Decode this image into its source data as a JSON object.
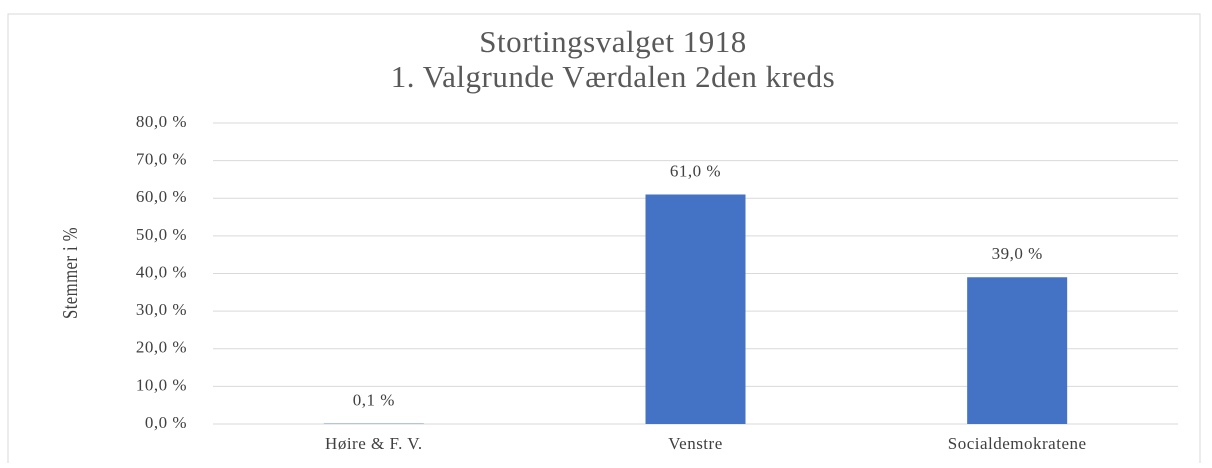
{
  "chart_data": {
    "type": "bar",
    "title": [
      "Stortingsvalget 1918",
      "1. Valgrunde Værdalen 2den kreds"
    ],
    "y_label": "Stemmer i %",
    "categories": [
      "Høire & F. V.",
      "Venstre",
      "Socialdemokratene"
    ],
    "values": [
      0.1,
      61.0,
      39.0
    ],
    "value_labels": [
      "0,1 %",
      "61,0 %",
      "39,0 %"
    ],
    "color": "#4472c4",
    "ylim": [
      0,
      80
    ],
    "yticks": [
      {
        "value": 0,
        "label": "0,0 %"
      },
      {
        "value": 10,
        "label": "10,0 %"
      },
      {
        "value": 20,
        "label": "20,0 %"
      },
      {
        "value": 30,
        "label": "30,0 %"
      },
      {
        "value": 40,
        "label": "40,0 %"
      },
      {
        "value": 50,
        "label": "50,0 %"
      },
      {
        "value": 60,
        "label": "60,0 %"
      },
      {
        "value": 70,
        "label": "70,0 %"
      },
      {
        "value": 80,
        "label": "80,0 %"
      }
    ],
    "grid": true
  }
}
